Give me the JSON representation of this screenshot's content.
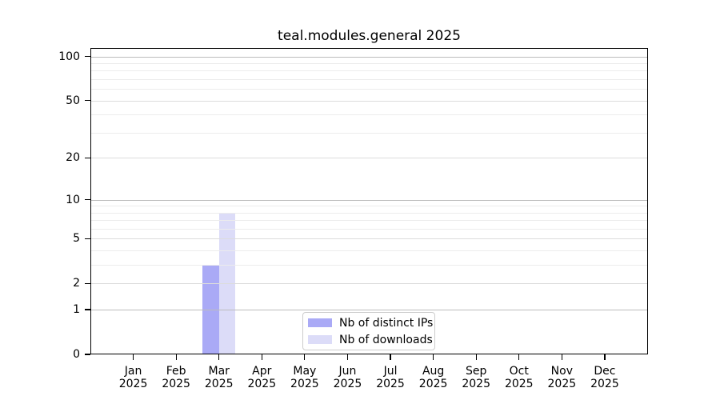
{
  "figure": {
    "background": "#ffffff"
  },
  "chart_data": {
    "type": "bar",
    "title": "teal.modules.general 2025",
    "x": [
      {
        "month": "Jan",
        "year": "2025"
      },
      {
        "month": "Feb",
        "year": "2025"
      },
      {
        "month": "Mar",
        "year": "2025"
      },
      {
        "month": "Apr",
        "year": "2025"
      },
      {
        "month": "May",
        "year": "2025"
      },
      {
        "month": "Jun",
        "year": "2025"
      },
      {
        "month": "Jul",
        "year": "2025"
      },
      {
        "month": "Aug",
        "year": "2025"
      },
      {
        "month": "Sep",
        "year": "2025"
      },
      {
        "month": "Oct",
        "year": "2025"
      },
      {
        "month": "Nov",
        "year": "2025"
      },
      {
        "month": "Dec",
        "year": "2025"
      }
    ],
    "series": [
      {
        "name": "Nb of distinct IPs",
        "color": "#aaaaf6",
        "values": [
          0,
          0,
          3,
          0,
          0,
          0,
          0,
          0,
          0,
          0,
          0,
          0
        ]
      },
      {
        "name": "Nb of downloads",
        "color": "#dcdcf8",
        "values": [
          0,
          0,
          8,
          0,
          0,
          0,
          0,
          0,
          0,
          0,
          0,
          0
        ]
      }
    ],
    "yscale": "log1p",
    "ylim": [
      0,
      115
    ],
    "yticks": [
      0,
      1,
      2,
      5,
      10,
      20,
      50,
      100
    ],
    "yticks_minor": [
      3,
      4,
      6,
      7,
      8,
      9,
      30,
      40,
      60,
      70,
      80,
      90
    ],
    "grid": "horizontal",
    "legend": {
      "position": "lower center"
    },
    "colors": {
      "frame": "#000000",
      "text": "#000000",
      "grid_decade": "#bcbcbc",
      "grid_tick": "#dcdcdc",
      "grid_minor": "#ececec",
      "legend_border": "#cccccc"
    }
  }
}
